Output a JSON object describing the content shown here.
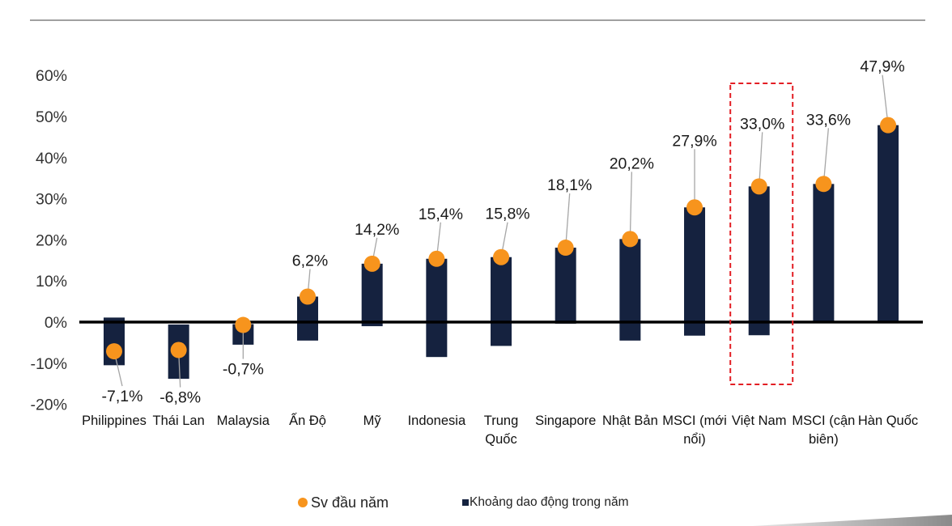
{
  "chart_data": {
    "type": "bar",
    "categories": [
      "Philippines",
      "Thái Lan",
      "Malaysia",
      "Ấn Độ",
      "Mỹ",
      "Indonesia",
      "Trung Quốc",
      "Singapore",
      "Nhật Bản",
      "MSCI (mới nổi)",
      "Việt Nam",
      "MSCI (cận biên)",
      "Hàn Quốc"
    ],
    "series": [
      {
        "name": "Sv đầu năm",
        "color": "#f7941d",
        "values": [
          -7.1,
          -6.8,
          -0.7,
          6.2,
          14.2,
          15.4,
          15.8,
          18.1,
          20.2,
          27.9,
          33.0,
          33.6,
          47.9
        ],
        "labels": [
          "-7,1%",
          "-6,8%",
          "-0,7%",
          "6,2%",
          "14,2%",
          "15,4%",
          "15,8%",
          "18,1%",
          "20,2%",
          "27,9%",
          "33,0%",
          "33,6%",
          "47,9%"
        ]
      },
      {
        "name": "Khoảng dao động trong năm",
        "color": "#15223f",
        "low": [
          -10.5,
          -13.8,
          -5.5,
          -4.5,
          -1.0,
          -8.5,
          -5.8,
          -0.4,
          -4.5,
          -3.3,
          -3.2,
          -0.2,
          -0.3
        ],
        "high": [
          1.1,
          -0.6,
          -0.5,
          6.2,
          14.2,
          15.4,
          15.8,
          18.1,
          20.2,
          27.9,
          33.0,
          33.6,
          47.9
        ]
      }
    ],
    "yticks": [
      60,
      50,
      40,
      30,
      20,
      10,
      0,
      -10,
      -20
    ],
    "ytick_labels": [
      "60%",
      "50%",
      "40%",
      "30%",
      "20%",
      "10%",
      "0%",
      "-10%",
      "-20%"
    ],
    "ylim": [
      -20,
      60
    ],
    "grid": false,
    "highlight_index": 10
  },
  "colors": {
    "rule": "#a0a0a0",
    "axis": "#000000",
    "leader": "#a6a6a6",
    "highlight": "#e31e24",
    "wedge_light": "#e6e6e6",
    "wedge_dark": "#8a8a8a"
  }
}
